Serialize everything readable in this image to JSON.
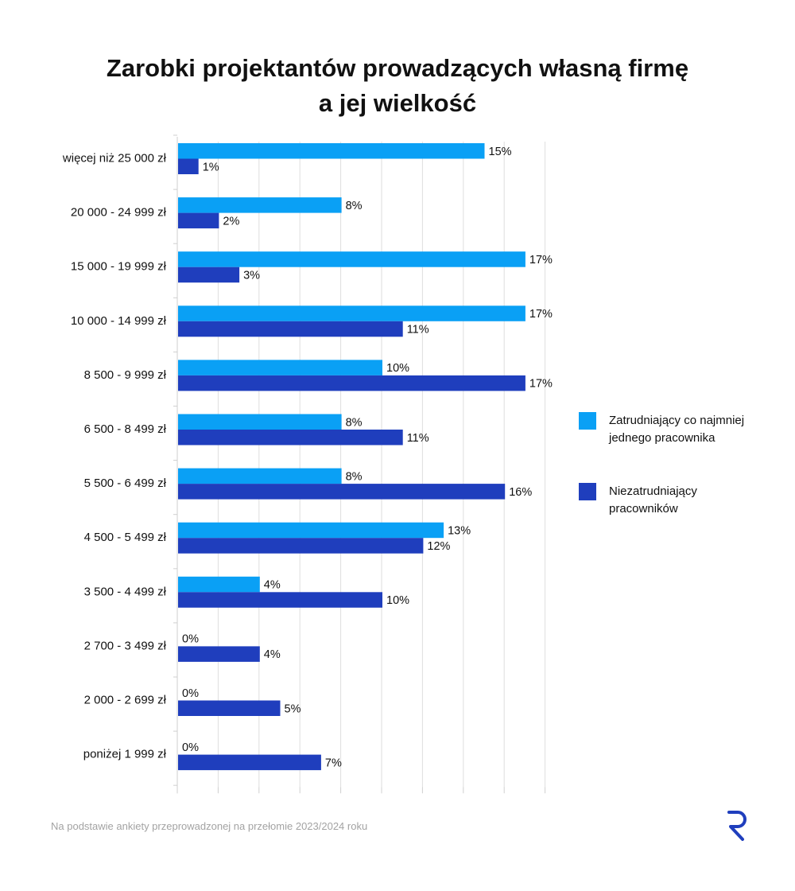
{
  "title_lines": [
    "Zarobki projektantów prowadzących własną firmę",
    "a jej wielkość"
  ],
  "footnote": "Na podstawie ankiety przeprowadzonej na przełomie 2023/2024 roku",
  "legend": [
    {
      "label": "Zatrudniający co najmniej jednego pracownika",
      "color": "#0aa0f5"
    },
    {
      "label": "Niezatrudniający pracowników",
      "color": "#1f3ebd"
    }
  ],
  "logo_icon": "r-logo-icon",
  "chart_data": {
    "type": "bar",
    "orientation": "horizontal",
    "title": "Zarobki projektantów prowadzących własną firmę a jej wielkość",
    "categories": [
      "więcej niż 25 000 zł",
      "20 000 - 24 999 zł",
      "15 000 - 19 999 zł",
      "10 000 - 14 999 zł",
      "8 500 - 9 999 zł",
      "6 500 - 8 499 zł",
      "5 500 - 6 499 zł",
      "4 500 - 5 499 zł",
      "3 500 - 4 499 zł",
      "2 700 - 3 499 zł",
      "2 000 - 2 699 zł",
      "poniżej 1 999 zł"
    ],
    "series": [
      {
        "name": "Zatrudniający co najmniej jednego pracownika",
        "color": "#0aa0f5",
        "values": [
          15,
          8,
          17,
          17,
          10,
          8,
          8,
          13,
          4,
          0,
          0,
          0
        ],
        "labels": [
          "15%",
          "8%",
          "17%",
          "17%",
          "10%",
          "8%",
          "8%",
          "13%",
          "4%",
          "0%",
          "0%",
          "0%"
        ]
      },
      {
        "name": "Niezatrudniający pracowników",
        "color": "#1f3ebd",
        "values": [
          1,
          2,
          3,
          11,
          17,
          11,
          16,
          12,
          10,
          4,
          5,
          7
        ],
        "labels": [
          "1%",
          "2%",
          "3%",
          "11%",
          "17%",
          "11%",
          "16%",
          "12%",
          "10%",
          "4%",
          "5%",
          "7%"
        ]
      }
    ],
    "xlim": [
      0,
      18
    ],
    "x_gridlines": [
      0,
      2,
      4,
      6,
      8,
      10,
      12,
      14,
      16,
      18
    ],
    "grid": true,
    "legend_position": "right"
  }
}
